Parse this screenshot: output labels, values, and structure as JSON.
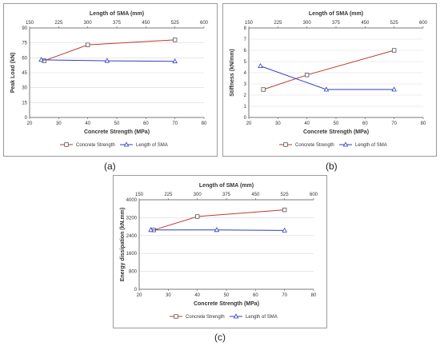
{
  "captions": {
    "a": "(a)",
    "b": "(b)",
    "c": "(c)"
  },
  "colors": {
    "concrete": "#c0392b",
    "concrete_marker": "#555555",
    "sma": "#2e3fbf"
  },
  "chart_data": [
    {
      "id": "a",
      "type": "line",
      "xlabel": "Concrete Strength (MPa)",
      "ylabel": "Peak Load (kN)",
      "x2label": "Length of SMA (mm)",
      "xlim": [
        20,
        80
      ],
      "xticks": [
        20,
        30,
        40,
        50,
        60,
        70,
        80
      ],
      "x2lim": [
        150,
        600
      ],
      "x2ticks": [
        150,
        225,
        300,
        375,
        450,
        525,
        600
      ],
      "ylim": [
        0,
        90
      ],
      "yticks": [
        0,
        15,
        30,
        45,
        60,
        75,
        90
      ],
      "legend": "bottom",
      "series": [
        {
          "name": "Concrete Strength",
          "axis": "x",
          "marker": "square",
          "x": [
            25,
            40,
            70
          ],
          "y": [
            57,
            73,
            78
          ]
        },
        {
          "name": "Length of SMA",
          "axis": "x2",
          "marker": "triangle",
          "x": [
            180,
            350,
            525
          ],
          "y": [
            58,
            57,
            56.5
          ]
        }
      ]
    },
    {
      "id": "b",
      "type": "line",
      "xlabel": "Concrete Strength (MPa)",
      "ylabel": "Stiffness (kN/mm)",
      "x2label": "Length of SMA (mm)",
      "xlim": [
        20,
        80
      ],
      "xticks": [
        20,
        30,
        40,
        50,
        60,
        70,
        80
      ],
      "x2lim": [
        150,
        600
      ],
      "x2ticks": [
        150,
        225,
        300,
        375,
        450,
        525,
        600
      ],
      "ylim": [
        0,
        8
      ],
      "yticks": [
        0,
        1,
        2,
        3,
        4,
        5,
        6,
        7,
        8
      ],
      "legend": "bottom",
      "series": [
        {
          "name": "Concrete Strength",
          "axis": "x",
          "marker": "square",
          "x": [
            25,
            40,
            70
          ],
          "y": [
            2.5,
            3.8,
            6.0
          ]
        },
        {
          "name": "Length of SMA",
          "axis": "x2",
          "marker": "triangle",
          "x": [
            180,
            350,
            525
          ],
          "y": [
            4.6,
            2.5,
            2.5
          ]
        }
      ]
    },
    {
      "id": "c",
      "type": "line",
      "xlabel": "Concrete Strength (MPa)",
      "ylabel": "Energy dissipation (kN.mm)",
      "x2label": "Length of SMA (mm)",
      "xlim": [
        20,
        80
      ],
      "xticks": [
        20,
        30,
        40,
        50,
        60,
        70,
        80
      ],
      "x2lim": [
        150,
        600
      ],
      "x2ticks": [
        150,
        225,
        300,
        375,
        450,
        525,
        600
      ],
      "ylim": [
        0,
        4000
      ],
      "yticks": [
        0,
        800,
        1600,
        2400,
        3200,
        4000
      ],
      "legend": "bottom",
      "series": [
        {
          "name": "Concrete Strength",
          "axis": "x",
          "marker": "square",
          "x": [
            25,
            40,
            70
          ],
          "y": [
            2650,
            3250,
            3550
          ]
        },
        {
          "name": "Length of SMA",
          "axis": "x2",
          "marker": "triangle",
          "x": [
            180,
            350,
            525
          ],
          "y": [
            2650,
            2650,
            2630
          ]
        }
      ]
    }
  ]
}
